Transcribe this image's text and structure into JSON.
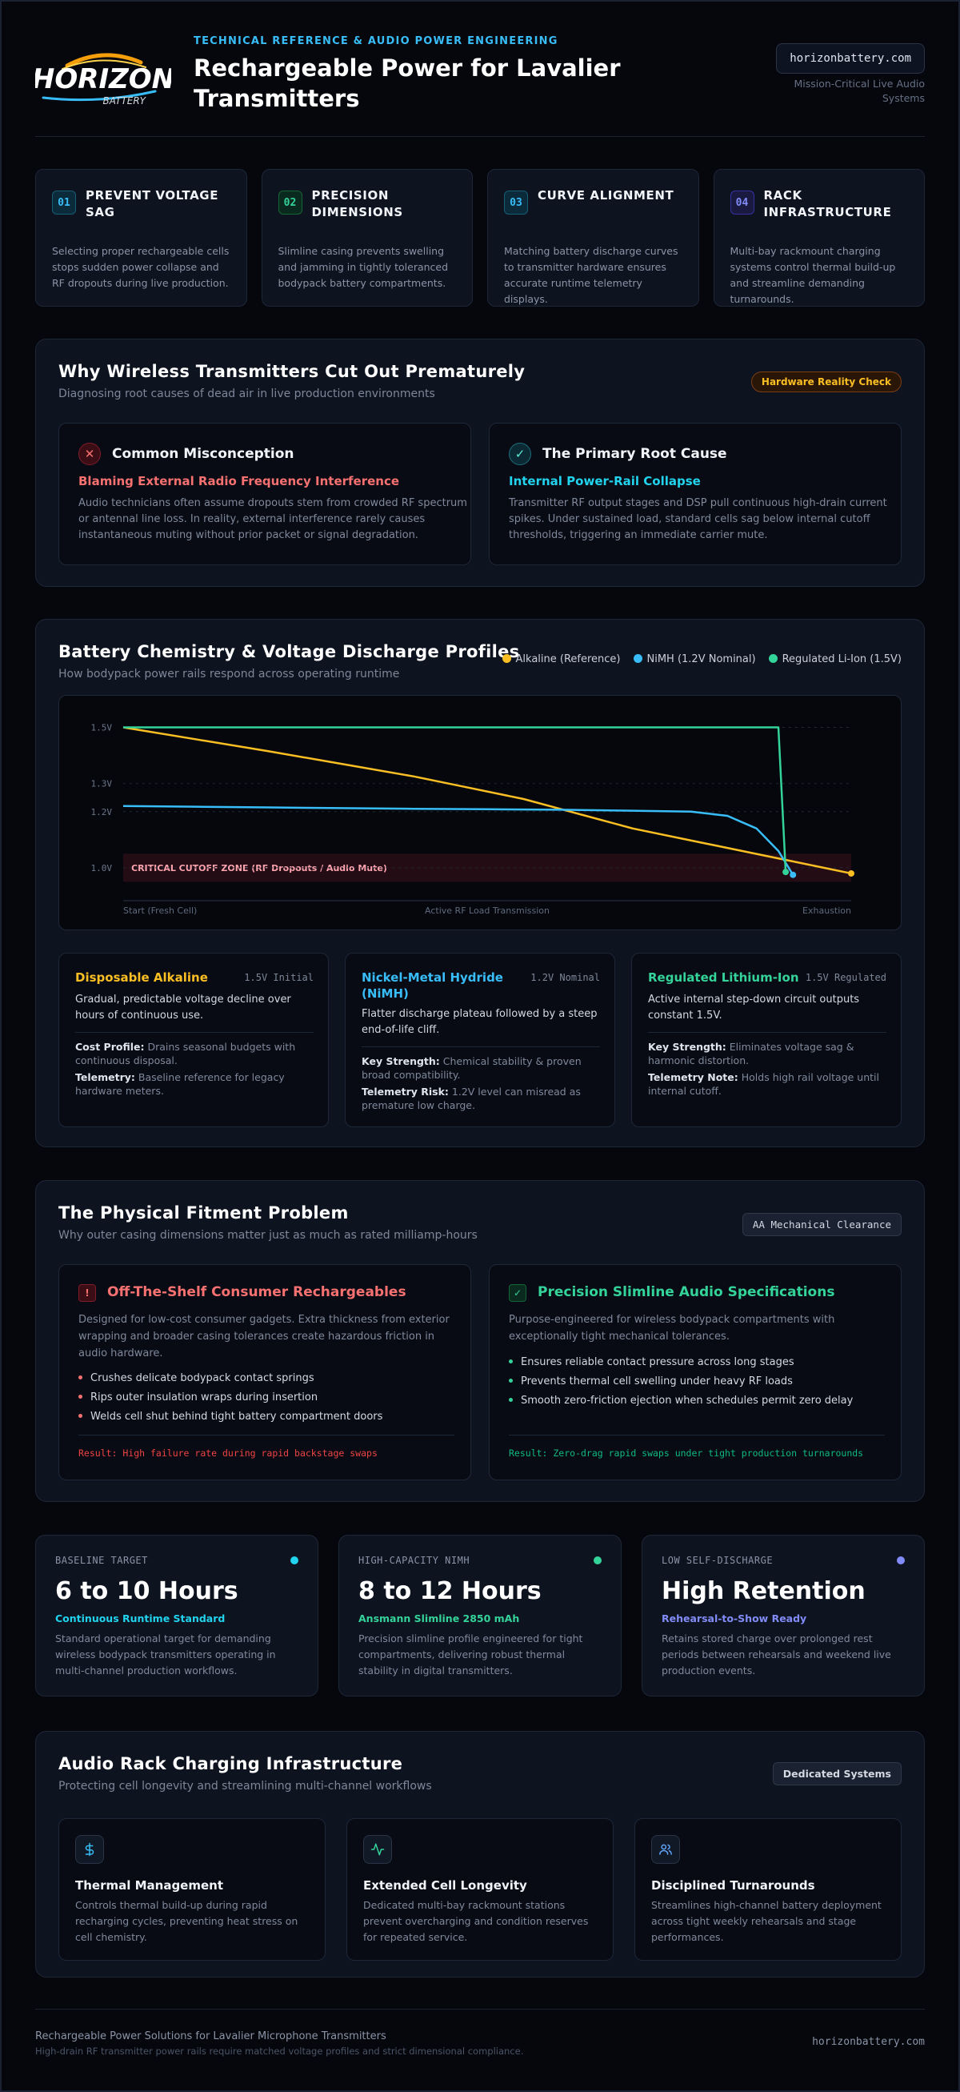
{
  "header": {
    "logo_word": "HORIZON",
    "logo_sub": "BATTERY",
    "eyebrow": "TECHNICAL REFERENCE & AUDIO POWER ENGINEERING",
    "title": "Rechargeable Power for Lavalier Transmitters",
    "domain": "horizonbattery.com",
    "tagline": "Mission-Critical Live Audio Systems"
  },
  "pillars": [
    {
      "num": "01",
      "title": "PREVENT VOLTAGE SAG",
      "desc": "Selecting proper rechargeable cells stops sudden power collapse and RF dropouts during live production.",
      "color": "#38bdf8"
    },
    {
      "num": "02",
      "title": "PRECISION DIMENSIONS",
      "desc": "Slimline casing prevents swelling and jamming in tightly toleranced bodypack battery compartments.",
      "color": "#34d399"
    },
    {
      "num": "03",
      "title": "CURVE ALIGNMENT",
      "desc": "Matching battery discharge curves to transmitter hardware ensures accurate runtime telemetry displays.",
      "color": "#38bdf8"
    },
    {
      "num": "04",
      "title": "RACK INFRASTRUCTURE",
      "desc": "Multi-bay rackmount charging systems control thermal build-up and streamline demanding turnarounds.",
      "color": "#818cf8"
    }
  ],
  "dropouts": {
    "title": "Why Wireless Transmitters Cut Out Prematurely",
    "subtitle": "Diagnosing root causes of dead air in live production environments",
    "badge": "Hardware Reality Check",
    "misconception": {
      "icon": "x-icon",
      "title": "Common Misconception",
      "subtitle": "Blaming External Radio Frequency Interference",
      "desc": "Audio technicians often assume dropouts stem from crowded RF spectrum or antennal line loss. In reality, external interference rarely causes instantaneous muting without prior packet or signal degradation."
    },
    "root_cause": {
      "icon": "check-icon",
      "title": "The Primary Root Cause",
      "subtitle": "Internal Power-Rail Collapse",
      "desc": "Transmitter RF output stages and DSP pull continuous high-drain current spikes. Under sustained load, standard cells sag below internal cutoff thresholds, triggering an immediate carrier mute."
    }
  },
  "discharge": {
    "title": "Battery Chemistry & Voltage Discharge Profiles",
    "subtitle": "How bodypack power rails respond across operating runtime",
    "legend": [
      {
        "label": "Alkaline (Reference)",
        "color": "#fbbf24"
      },
      {
        "label": "NiMH (1.2V Nominal)",
        "color": "#38bdf8"
      },
      {
        "label": "Regulated Li-Ion (1.5V)",
        "color": "#34d399"
      }
    ],
    "chemistries": [
      {
        "name": "Disposable Alkaline",
        "rating": "1.5V Initial",
        "color": "#fbbf24",
        "desc": "Gradual, predictable voltage decline over hours of continuous use.",
        "k1": "Cost Profile:",
        "v1": "Drains seasonal budgets with continuous disposal.",
        "k2": "Telemetry:",
        "v2": "Baseline reference for legacy hardware meters."
      },
      {
        "name": "Nickel-Metal Hydride (NiMH)",
        "rating": "1.2V Nominal",
        "color": "#38bdf8",
        "desc": "Flatter discharge plateau followed by a steep end-of-life cliff.",
        "k1": "Key Strength:",
        "v1": "Chemical stability & proven broad compatibility.",
        "k2": "Telemetry Risk:",
        "v2": "1.2V level can misread as premature low charge."
      },
      {
        "name": "Regulated Lithium-Ion",
        "rating": "1.5V Regulated",
        "color": "#34d399",
        "desc": "Active internal step-down circuit outputs constant 1.5V.",
        "k1": "Key Strength:",
        "v1": "Eliminates voltage sag & harmonic distortion.",
        "k2": "Telemetry Note:",
        "v2": "Holds high rail voltage until internal cutoff."
      }
    ]
  },
  "chart_data": {
    "type": "line",
    "title": "",
    "xlabel": "",
    "ylabel": "",
    "x_ticks": [
      "Start (Fresh Cell)",
      "Active RF Load Transmission",
      "Exhaustion"
    ],
    "y_ticks": [
      "1.5V",
      "1.3V",
      "1.2V",
      "1.0V"
    ],
    "y_tick_values": [
      1.5,
      1.3,
      1.2,
      1.0
    ],
    "xlim": [
      0,
      100
    ],
    "ylim": [
      0.9,
      1.55
    ],
    "annotation": "CRITICAL CUTOFF ZONE (RF Dropouts / Audio Mute)",
    "cutoff_band": [
      0.95,
      1.05
    ],
    "grid": true,
    "series": [
      {
        "name": "Alkaline (Reference)",
        "color": "#fbbf24",
        "points": [
          [
            0,
            1.5
          ],
          [
            20,
            1.415
          ],
          [
            40,
            1.325
          ],
          [
            55,
            1.245
          ],
          [
            70,
            1.14
          ],
          [
            85,
            1.06
          ],
          [
            100,
            0.98
          ]
        ]
      },
      {
        "name": "NiMH (1.2V Nominal)",
        "color": "#38bdf8",
        "points": [
          [
            0,
            1.22
          ],
          [
            20,
            1.215
          ],
          [
            40,
            1.21
          ],
          [
            60,
            1.207
          ],
          [
            78,
            1.2
          ],
          [
            83,
            1.185
          ],
          [
            87,
            1.14
          ],
          [
            90,
            1.06
          ],
          [
            92,
            0.975
          ]
        ]
      },
      {
        "name": "Regulated Li-Ion (1.5V)",
        "color": "#34d399",
        "points": [
          [
            0,
            1.5
          ],
          [
            40,
            1.5
          ],
          [
            70,
            1.5
          ],
          [
            90,
            1.5
          ],
          [
            91,
            0.985
          ]
        ]
      }
    ]
  },
  "fitment": {
    "title": "The Physical Fitment Problem",
    "subtitle": "Why outer casing dimensions matter just as much as rated milliamp-hours",
    "badge": "AA Mechanical Clearance",
    "consumer": {
      "icon": "!",
      "title": "Off-The-Shelf Consumer Rechargeables",
      "desc": "Designed for low-cost consumer gadgets. Extra thickness from exterior wrapping and broader casing tolerances create hazardous friction in audio hardware.",
      "items": [
        "Crushes delicate bodypack contact springs",
        "Rips outer insulation wraps during insertion",
        "Welds cell shut behind tight battery compartment doors"
      ],
      "result": "Result: High failure rate during rapid backstage swaps"
    },
    "slimline": {
      "icon": "✓",
      "title": "Precision Slimline Audio Specifications",
      "desc": "Purpose-engineered for wireless bodypack compartments with exceptionally tight mechanical tolerances.",
      "items": [
        "Ensures reliable contact pressure across long stages",
        "Prevents thermal cell swelling under heavy RF loads",
        "Smooth zero-friction ejection when schedules permit zero delay"
      ],
      "result": "Result: Zero-drag rapid swaps under tight production turnarounds"
    }
  },
  "runtime": [
    {
      "label": "BASELINE TARGET",
      "value": "6 to 10 Hours",
      "tag": "Continuous Runtime Standard",
      "desc": "Standard operational target for demanding wireless bodypack transmitters operating in multi-channel production workflows.",
      "color": "#22d3ee"
    },
    {
      "label": "HIGH-CAPACITY NIMH",
      "value": "8 to 12 Hours",
      "tag": "Ansmann Slimline 2850 mAh",
      "desc": "Precision slimline profile engineered for tight compartments, delivering robust thermal stability in digital transmitters.",
      "color": "#34d399"
    },
    {
      "label": "LOW SELF-DISCHARGE",
      "value": "High Retention",
      "tag": "Rehearsal-to-Show Ready",
      "desc": "Retains stored charge over prolonged rest periods between rehearsals and weekend live production events.",
      "color": "#818cf8"
    }
  ],
  "infrastructure": {
    "title": "Audio Rack Charging Infrastructure",
    "subtitle": "Protecting cell longevity and streamlining multi-channel workflows",
    "badge": "Dedicated Systems",
    "cards": [
      {
        "icon": "dollar-icon",
        "title": "Thermal Management",
        "desc": "Controls thermal build-up during rapid recharging cycles, preventing heat stress on cell chemistry."
      },
      {
        "icon": "activity-icon",
        "title": "Extended Cell Longevity",
        "desc": "Dedicated multi-bay rackmount stations prevent overcharging and condition reserves for repeated service."
      },
      {
        "icon": "users-icon",
        "title": "Disciplined Turnarounds",
        "desc": "Streamlines high-channel battery deployment across tight weekly rehearsals and stage performances."
      }
    ]
  },
  "footer": {
    "title": "Rechargeable Power Solutions for Lavalier Microphone Transmitters",
    "subtitle": "High-drain RF transmitter power rails require matched voltage profiles and strict dimensional compliance.",
    "domain": "horizonbattery.com"
  }
}
